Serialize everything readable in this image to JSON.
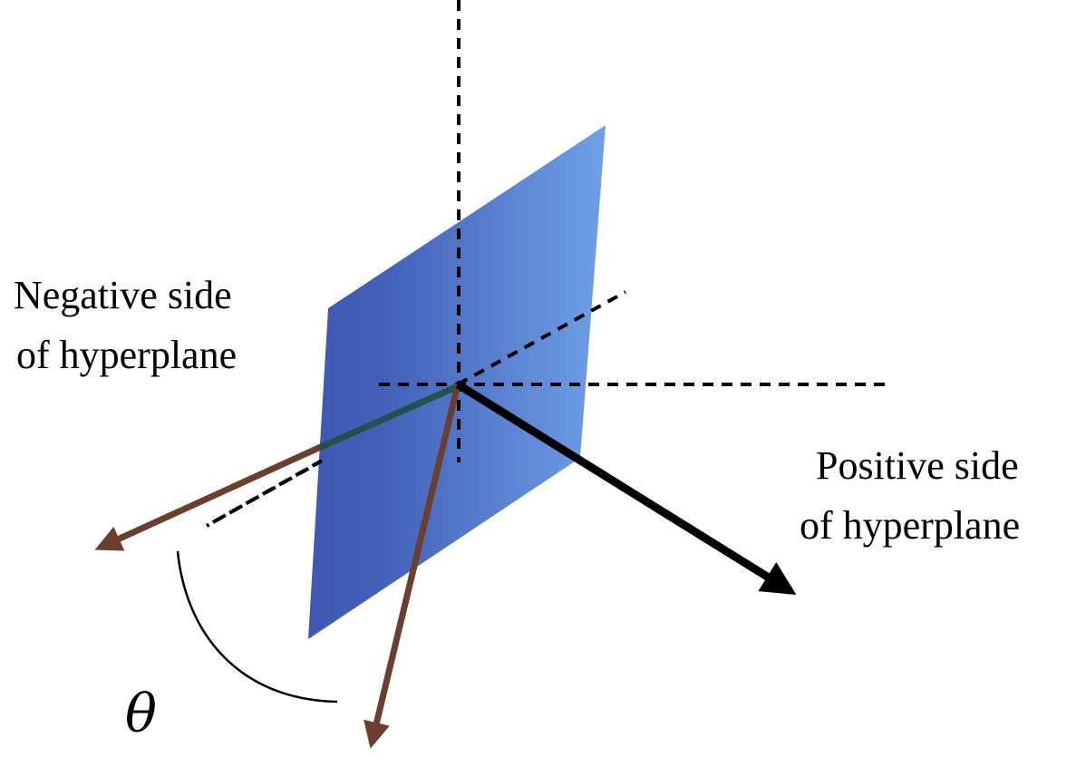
{
  "labels": {
    "negative_line1": "Negative side",
    "negative_line2": "of hyperplane",
    "positive_line1": "Positive side",
    "positive_line2": "of hyperplane",
    "angle_symbol": "θ"
  },
  "colors": {
    "plane_left": "#3f58b3",
    "plane_right": "#6fa0e6",
    "axis": "#000000",
    "normal_vector": "#000000",
    "data_vectors": "#6b3e2e",
    "shadow_segment": "#1f4d3b"
  }
}
